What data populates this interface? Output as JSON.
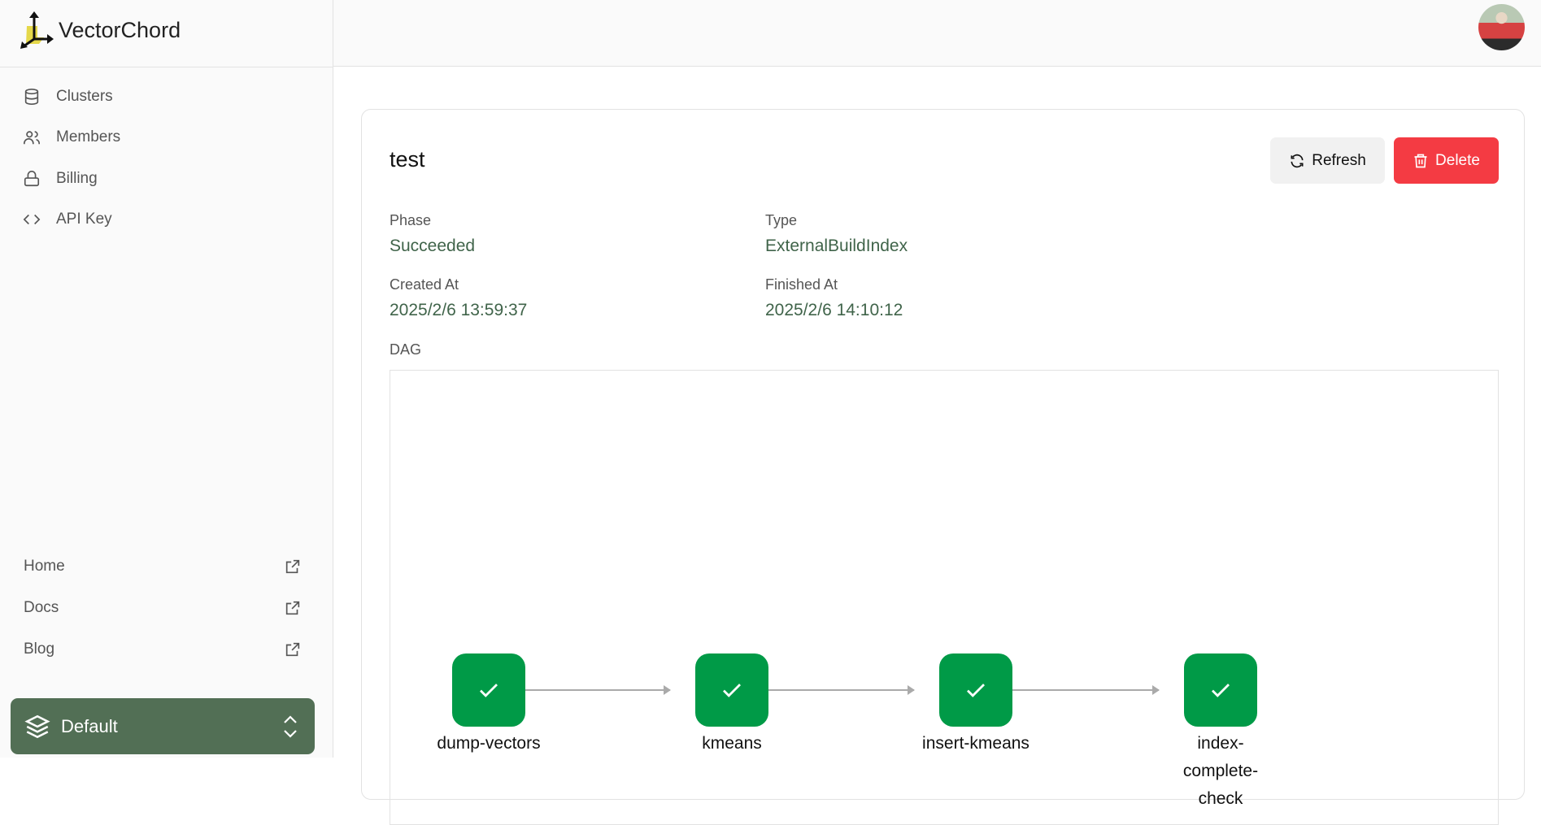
{
  "brand": {
    "name": "VectorChord"
  },
  "sidebar": {
    "items": [
      {
        "label": "Clusters",
        "icon": "database-icon"
      },
      {
        "label": "Members",
        "icon": "users-icon"
      },
      {
        "label": "Billing",
        "icon": "lock-icon"
      },
      {
        "label": "API Key",
        "icon": "code-icon"
      }
    ],
    "links": [
      {
        "label": "Home",
        "icon": "external-link-icon"
      },
      {
        "label": "Docs",
        "icon": "external-link-icon"
      },
      {
        "label": "Blog",
        "icon": "external-link-icon"
      }
    ],
    "org": {
      "label": "Default",
      "icon": "layers-icon",
      "color": "#526f55"
    }
  },
  "job": {
    "title": "test",
    "refresh_label": "Refresh",
    "delete_label": "Delete",
    "fields": {
      "phase": {
        "label": "Phase",
        "value": "Succeeded"
      },
      "type": {
        "label": "Type",
        "value": "ExternalBuildIndex"
      },
      "created": {
        "label": "Created At",
        "value": "2025/2/6 13:59:37"
      },
      "finished": {
        "label": "Finished At",
        "value": "2025/2/6 14:10:12"
      }
    },
    "dag_label": "DAG",
    "dag_nodes": [
      {
        "name": "dump-vectors",
        "status": "succeeded"
      },
      {
        "name": "kmeans",
        "status": "succeeded"
      },
      {
        "name": "insert-kmeans",
        "status": "succeeded"
      },
      {
        "name": "index-complete-check",
        "status": "succeeded"
      }
    ],
    "colors": {
      "success": "#009a47",
      "delete": "#f43b43",
      "value_text": "#40644a"
    }
  }
}
